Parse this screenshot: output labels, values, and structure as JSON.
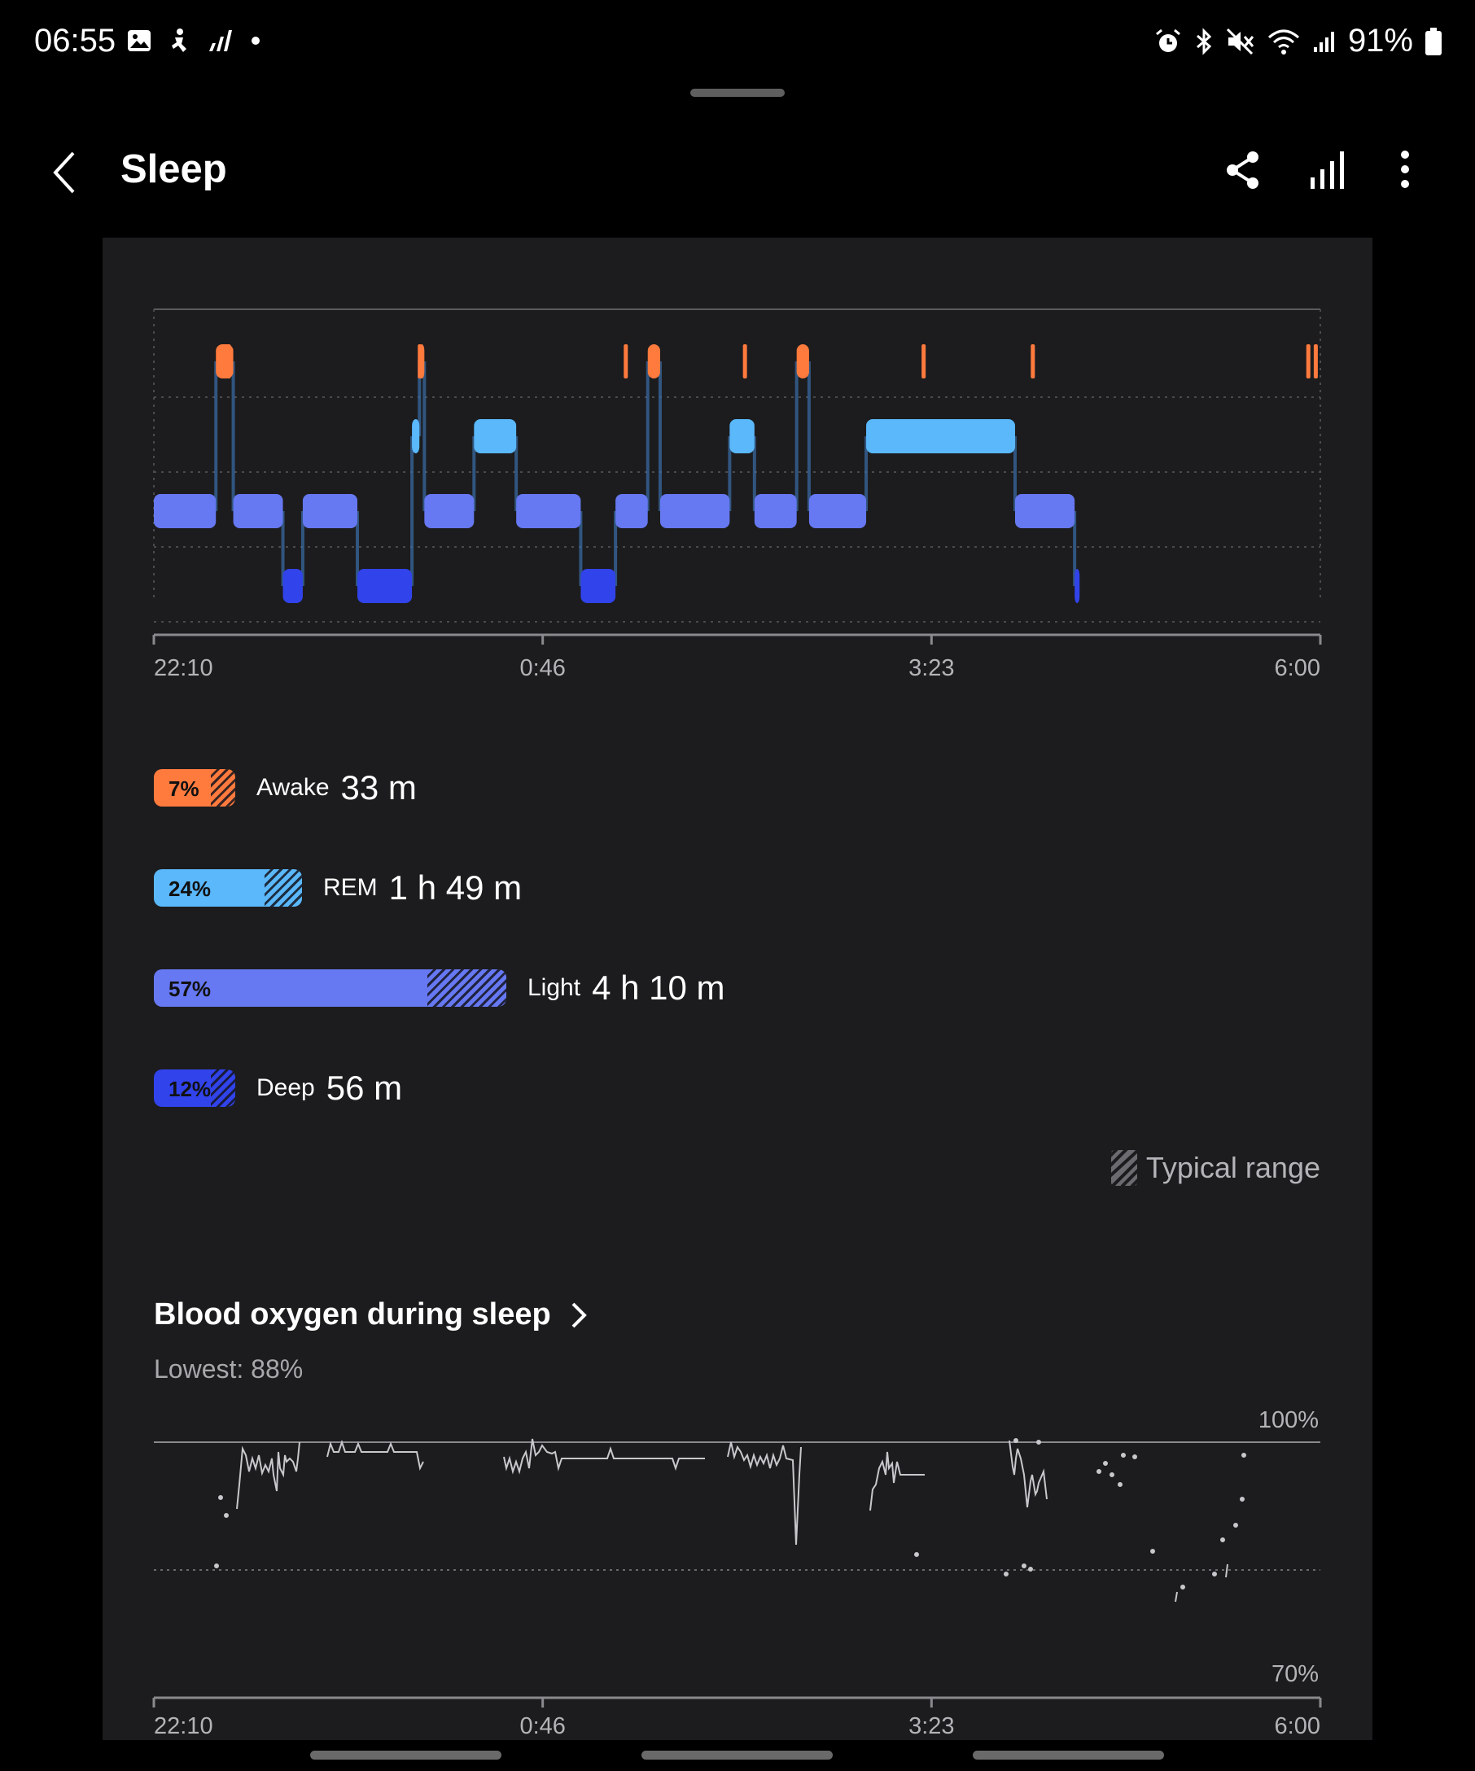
{
  "status_bar": {
    "time": "06:55",
    "battery": "91%",
    "left_icons": [
      "gallery-icon",
      "accessibility-icon",
      "signal-icon",
      "dot-icon"
    ],
    "right_icons": [
      "alarm-icon",
      "bluetooth-icon",
      "mute-icon",
      "wifi-icon",
      "cell-signal-icon",
      "battery-icon"
    ]
  },
  "app_bar": {
    "title": "Sleep",
    "actions": [
      "share-icon",
      "stats-icon",
      "more-icon"
    ]
  },
  "colors": {
    "awake": "#ff7a3d",
    "rem": "#5ab8fb",
    "light": "#6678f2",
    "deep": "#3143ea",
    "card": "#1c1c1e"
  },
  "sleep_chart": {
    "x_ticks": [
      "22:10",
      "0:46",
      "3:23",
      "6:00"
    ],
    "stage_levels": [
      "Awake",
      "REM",
      "Light",
      "Deep"
    ],
    "start": "22:10",
    "end": "6:00",
    "segments": [
      {
        "stage": "Light",
        "start": "22:10",
        "end": "22:35"
      },
      {
        "stage": "Awake",
        "start": "22:35",
        "end": "22:42"
      },
      {
        "stage": "Light",
        "start": "22:42",
        "end": "23:02"
      },
      {
        "stage": "Deep",
        "start": "23:02",
        "end": "23:10"
      },
      {
        "stage": "Light",
        "start": "23:10",
        "end": "23:32"
      },
      {
        "stage": "Deep",
        "start": "23:32",
        "end": "23:54"
      },
      {
        "stage": "REM",
        "start": "23:54",
        "end": "23:57"
      },
      {
        "stage": "Awake",
        "start": "23:57",
        "end": "23:59"
      },
      {
        "stage": "Light",
        "start": "23:59",
        "end": "0:19"
      },
      {
        "stage": "REM",
        "start": "0:19",
        "end": "0:36"
      },
      {
        "stage": "Light",
        "start": "0:36",
        "end": "1:02"
      },
      {
        "stage": "Deep",
        "start": "1:02",
        "end": "1:16"
      },
      {
        "stage": "Light",
        "start": "1:16",
        "end": "1:29"
      },
      {
        "stage": "Awake",
        "start": "1:29",
        "end": "1:34"
      },
      {
        "stage": "Light",
        "start": "1:34",
        "end": "2:02"
      },
      {
        "stage": "REM",
        "start": "2:02",
        "end": "2:12"
      },
      {
        "stage": "Light",
        "start": "2:12",
        "end": "2:29"
      },
      {
        "stage": "Awake",
        "start": "2:29",
        "end": "2:34"
      },
      {
        "stage": "Light",
        "start": "2:34",
        "end": "2:57"
      },
      {
        "stage": "REM",
        "start": "2:57",
        "end": "3:57"
      },
      {
        "stage": "Light",
        "start": "3:57",
        "end": "4:21"
      },
      {
        "stage": "Deep",
        "start": "4:21",
        "end": "4:23"
      }
    ],
    "brief_awakenings": [
      "22:40",
      "23:57",
      "1:20",
      "2:08",
      "3:20",
      "4:04",
      "5:55",
      "5:58"
    ]
  },
  "stages": [
    {
      "name": "Awake",
      "percent": "7%",
      "duration": "33 m",
      "fraction": 0.07
    },
    {
      "name": "REM",
      "percent": "24%",
      "duration": "1 h 49 m",
      "fraction": 0.24
    },
    {
      "name": "Light",
      "percent": "57%",
      "duration": "4 h 10 m",
      "fraction": 0.57
    },
    {
      "name": "Deep",
      "percent": "12%",
      "duration": "56 m",
      "fraction": 0.12
    }
  ],
  "typical_range_label": "Typical range",
  "blood_oxygen": {
    "title": "Blood oxygen during sleep",
    "lowest": "Lowest: 88%",
    "y_max_label": "100%",
    "y_min_label": "70%",
    "x_ticks": [
      "22:10",
      "0:46",
      "3:23",
      "6:00"
    ]
  }
}
